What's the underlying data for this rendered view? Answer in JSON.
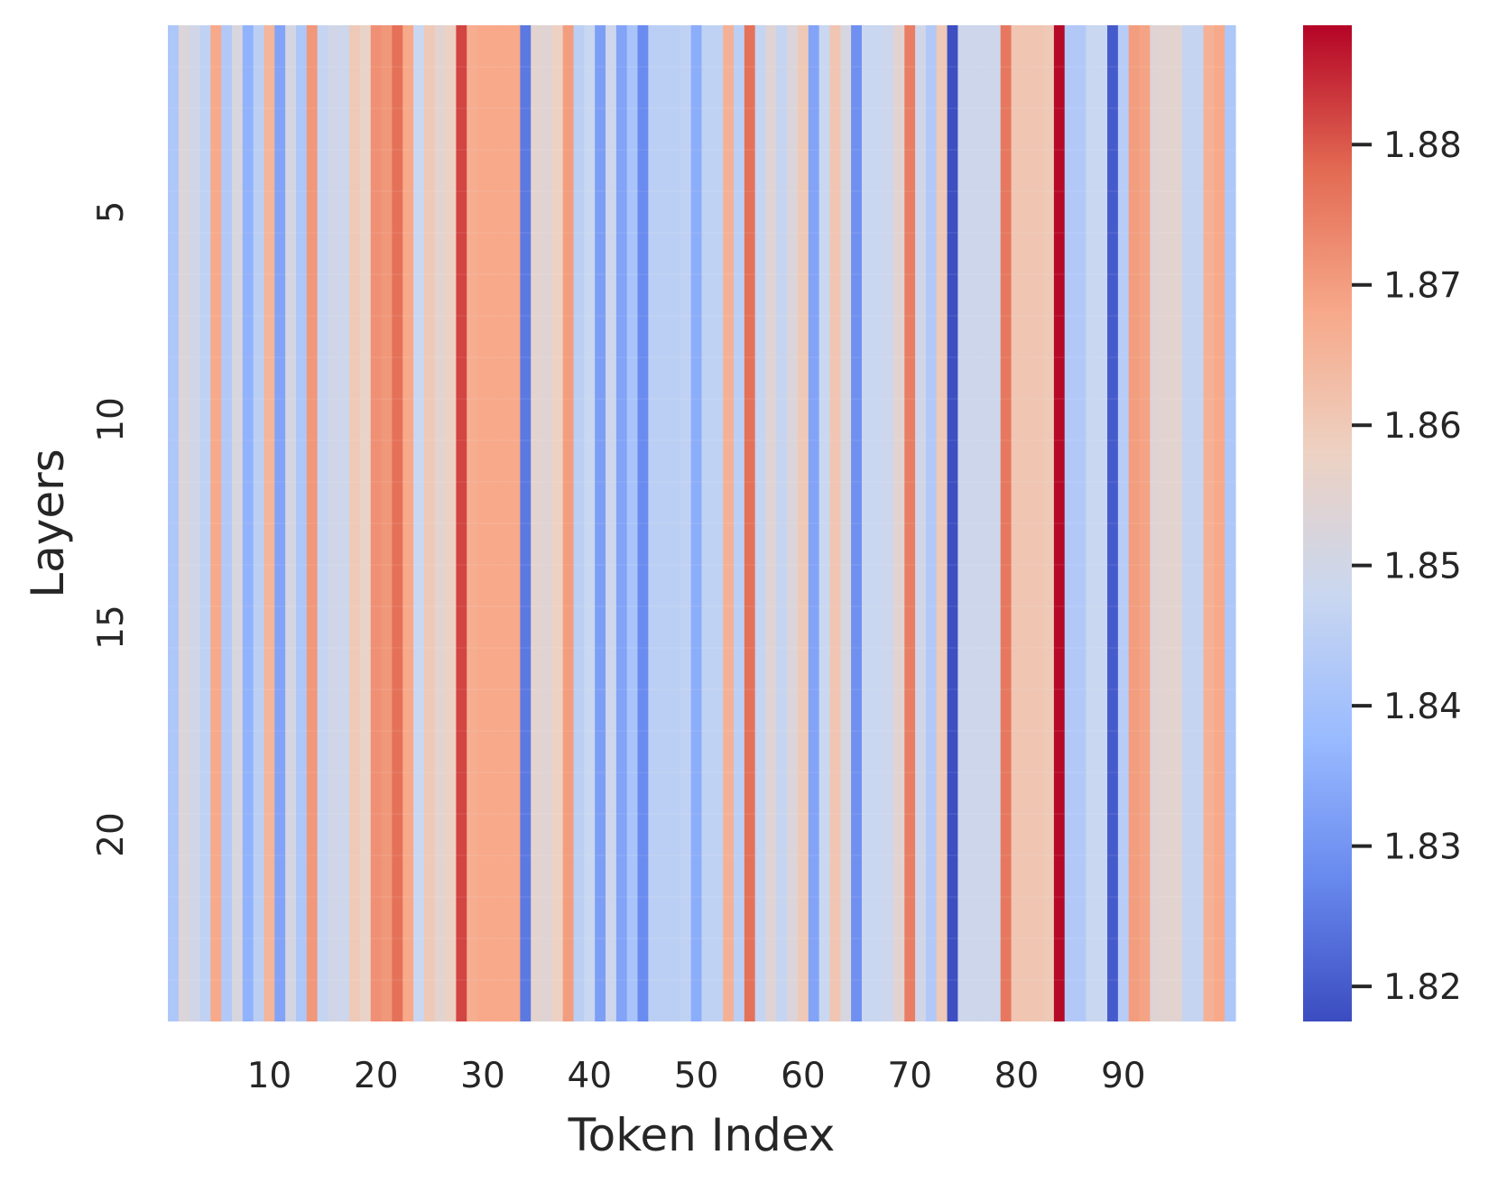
{
  "chart_data": {
    "type": "heatmap",
    "title": "",
    "xlabel": "Token Index",
    "ylabel": "Layers",
    "colormap": "coolwarm",
    "colormap_stops": [
      "#3b4cc0",
      "#6889ee",
      "#9abbff",
      "#c9d7f0",
      "#edd1c2",
      "#f7a889",
      "#e26952",
      "#b40426"
    ],
    "n_rows": 24,
    "n_cols": 100,
    "x_tick_labels": [
      "10",
      "20",
      "30",
      "40",
      "50",
      "60",
      "70",
      "80",
      "90"
    ],
    "y_tick_labels": [
      "5",
      "10",
      "15",
      "20"
    ],
    "colorbar": {
      "vmin": 1.8175,
      "vmax": 1.8885,
      "tick_labels": [
        "1.82",
        "1.83",
        "1.84",
        "1.85",
        "1.86",
        "1.87",
        "1.88"
      ]
    },
    "column_values": [
      1.842,
      1.853,
      1.85,
      1.846,
      1.868,
      1.843,
      1.852,
      1.836,
      1.845,
      1.865,
      1.833,
      1.851,
      1.842,
      1.871,
      1.847,
      1.85,
      1.849,
      1.86,
      1.857,
      1.872,
      1.871,
      1.877,
      1.868,
      1.848,
      1.86,
      1.855,
      1.858,
      1.882,
      1.867,
      1.868,
      1.868,
      1.868,
      1.868,
      1.825,
      1.855,
      1.854,
      1.858,
      1.87,
      1.845,
      1.848,
      1.832,
      1.849,
      1.833,
      1.841,
      1.828,
      1.845,
      1.845,
      1.845,
      1.846,
      1.835,
      1.846,
      1.846,
      1.866,
      1.845,
      1.877,
      1.847,
      1.854,
      1.847,
      1.853,
      1.86,
      1.833,
      1.848,
      1.861,
      1.852,
      1.829,
      1.848,
      1.848,
      1.849,
      1.855,
      1.875,
      1.85,
      1.843,
      1.86,
      1.818,
      1.849,
      1.849,
      1.849,
      1.849,
      1.876,
      1.861,
      1.861,
      1.861,
      1.86,
      1.888,
      1.843,
      1.843,
      1.848,
      1.848,
      1.82,
      1.844,
      1.87,
      1.869,
      1.854,
      1.855,
      1.855,
      1.847,
      1.847,
      1.866,
      1.868,
      1.842
    ]
  }
}
